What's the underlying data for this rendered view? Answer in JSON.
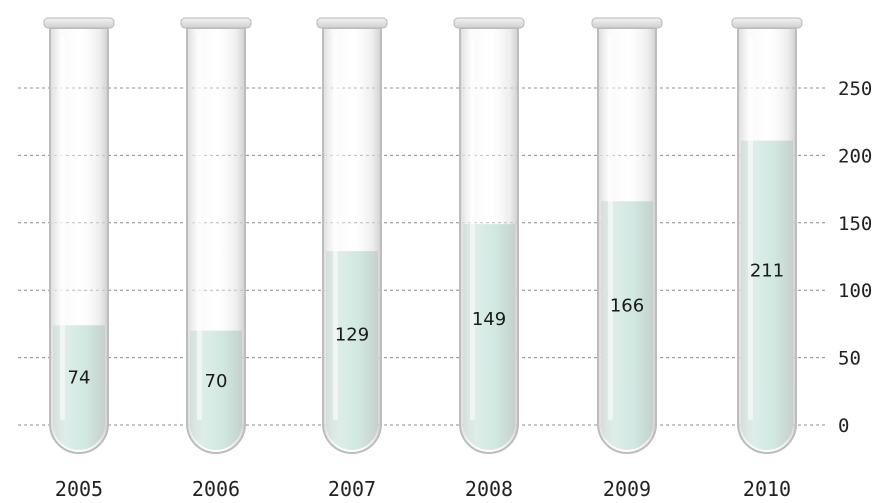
{
  "chart_data": {
    "type": "bar",
    "categories": [
      "2005",
      "2006",
      "2007",
      "2008",
      "2009",
      "2010"
    ],
    "values": [
      74,
      70,
      129,
      149,
      166,
      211
    ],
    "title": "",
    "xlabel": "",
    "ylabel": "",
    "ylim": [
      0,
      250
    ],
    "yticks": [
      "0",
      "50",
      "100",
      "150",
      "200",
      "250"
    ],
    "grid": true,
    "y_axis_side": "right",
    "colors": {
      "liquid": "#b7dad0",
      "glass": "#e6e6e6",
      "grid": "#8c8c8c"
    }
  }
}
